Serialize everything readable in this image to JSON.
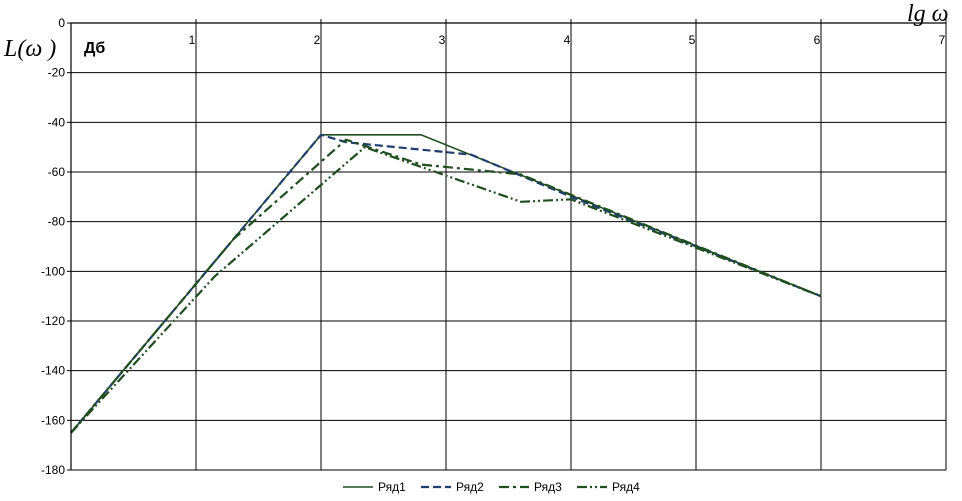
{
  "chart_data": {
    "type": "line",
    "title": "",
    "xlabel": "lg ω",
    "ylabel": "L(ω )",
    "unit_label": "Дб",
    "xlim": [
      0,
      7
    ],
    "ylim": [
      -180,
      0
    ],
    "x_ticks": [
      "1",
      "2",
      "3",
      "4",
      "5",
      "6",
      "7"
    ],
    "y_ticks": [
      "0",
      "-20",
      "-40",
      "-60",
      "-80",
      "-100",
      "-120",
      "-140",
      "-160",
      "-180"
    ],
    "grid": true,
    "legend_position": "bottom",
    "series": [
      {
        "name": "Ряд1",
        "color": "#1f4e1f",
        "dash": "solid",
        "x": [
          0,
          2,
          2.8,
          6
        ],
        "y": [
          -165,
          -45,
          -45,
          -110
        ]
      },
      {
        "name": "Ряд2",
        "color": "#1f3f6e",
        "dash": "dash",
        "x": [
          0,
          2,
          2.2,
          3.2,
          4,
          6
        ],
        "y": [
          -165,
          -45,
          -48,
          -53,
          -70,
          -110
        ]
      },
      {
        "name": "Ряд3",
        "color": "#1f4e1f",
        "dash": "dashdot",
        "x": [
          0,
          1.3,
          2.2,
          2.8,
          3.6,
          6
        ],
        "y": [
          -165,
          -87,
          -47,
          -57,
          -61,
          -110
        ]
      },
      {
        "name": "Ряд4",
        "color": "#1f4e1f",
        "dash": "dashdotdot",
        "x": [
          0,
          1.15,
          2.35,
          3.6,
          4,
          6
        ],
        "y": [
          -165,
          -102,
          -50,
          -72,
          -71,
          -110
        ]
      }
    ]
  }
}
